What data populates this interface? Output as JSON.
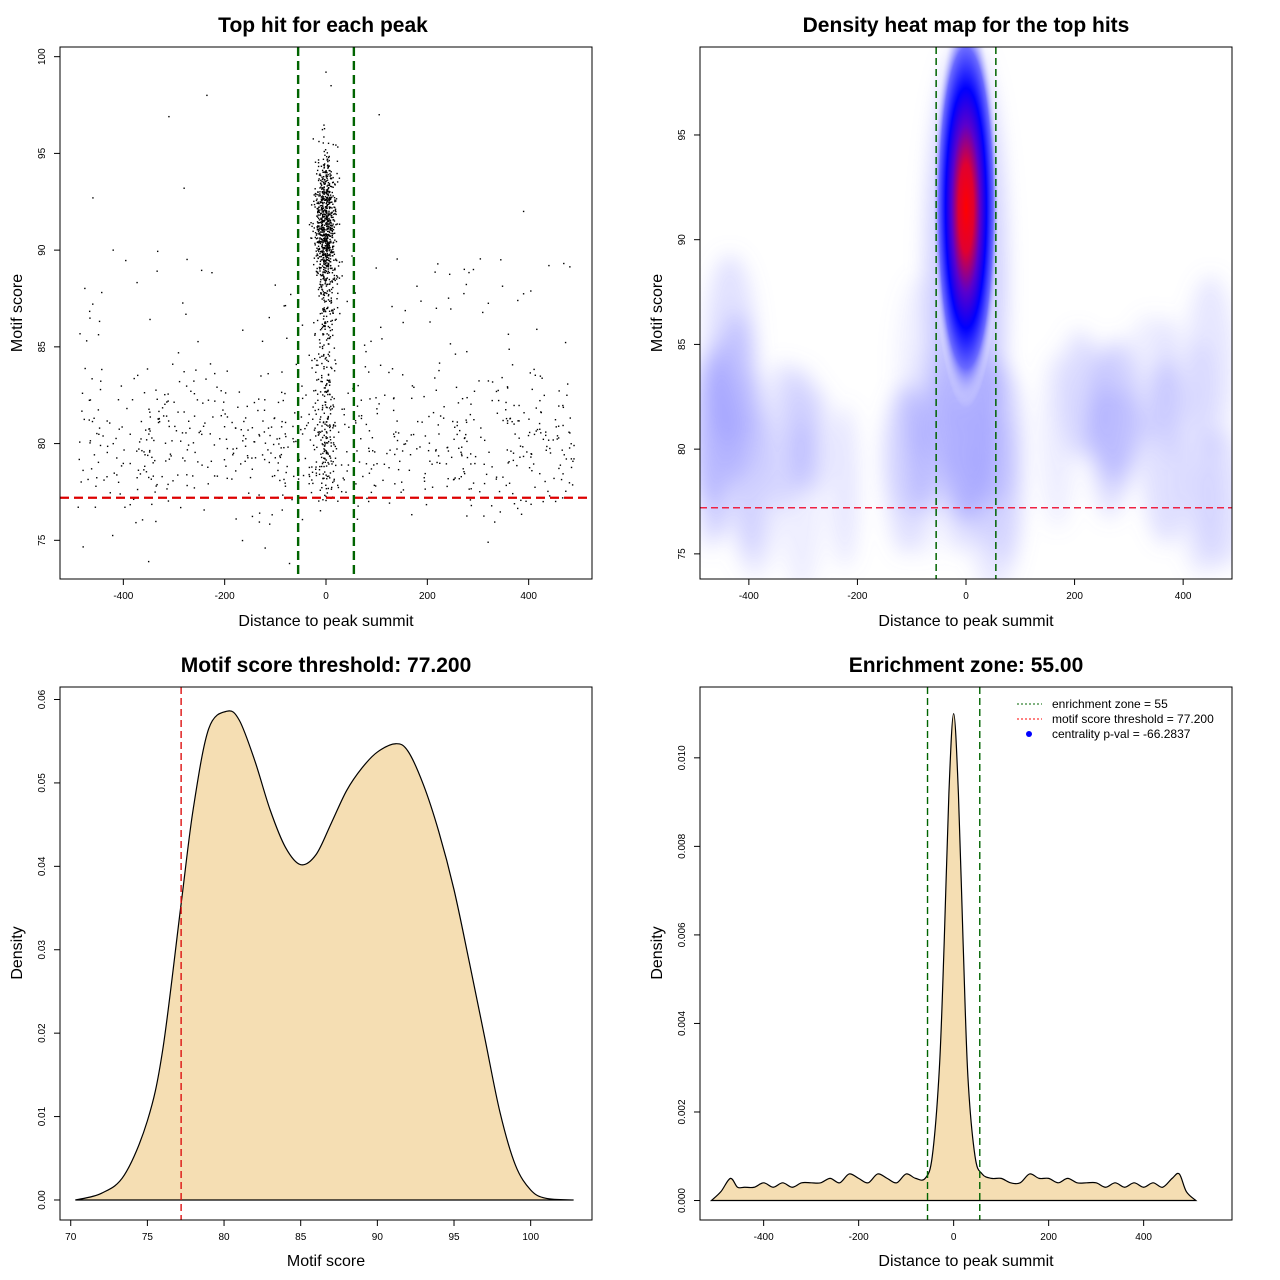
{
  "chart_data": [
    {
      "id": "scatter",
      "type": "scatter",
      "title": "Top hit for each peak",
      "xlabel": "Distance to peak summit",
      "ylabel": "Motif score",
      "xlim": [
        -525,
        525
      ],
      "ylim": [
        73,
        100.5
      ],
      "xticks": [
        -400,
        -200,
        0,
        200,
        400
      ],
      "yticks": [
        75,
        80,
        85,
        90,
        95,
        100
      ],
      "threshold": 77.2,
      "zone": [
        -55,
        55
      ],
      "description_points": {
        "central_cluster": {
          "x_range": [
            -55,
            55
          ],
          "y_range": [
            75,
            99.2
          ]
        },
        "background": {
          "x_range": [
            -490,
            490
          ],
          "y_range": [
            73.8,
            98.1
          ]
        }
      },
      "sample_points": [
        {
          "x": -235,
          "y": 98.0
        },
        {
          "x": -310,
          "y": 96.9
        },
        {
          "x": 105,
          "y": 97.0
        },
        {
          "x": -460,
          "y": 92.7
        },
        {
          "x": 390,
          "y": 92.0
        },
        {
          "x": -280,
          "y": 93.2
        },
        {
          "x": -420,
          "y": 90.0
        },
        {
          "x": 440,
          "y": 89.2
        },
        {
          "x": 345,
          "y": 89.5
        },
        {
          "x": -350,
          "y": 73.9
        },
        {
          "x": -120,
          "y": 74.6
        },
        {
          "x": 320,
          "y": 74.9
        },
        {
          "x": -72,
          "y": 73.8
        },
        {
          "x": 0,
          "y": 99.2
        },
        {
          "x": 10,
          "y": 98.5
        }
      ]
    },
    {
      "id": "heatmap",
      "type": "heatmap",
      "title": "Density heat map for the top hits",
      "xlabel": "Distance to peak summit",
      "ylabel": "Motif score",
      "xlim": [
        -490,
        490
      ],
      "ylim": [
        73.8,
        99.2
      ],
      "xticks": [
        -400,
        -200,
        0,
        200,
        400
      ],
      "yticks": [
        75,
        80,
        85,
        90,
        95
      ],
      "threshold": 77.2,
      "zone": [
        -55,
        55
      ],
      "peak": {
        "x": 0,
        "y": 91.5
      },
      "colors": {
        "low": "#ffffff",
        "mid": "#0000ff",
        "high": "#ff0000"
      }
    },
    {
      "id": "score-density",
      "type": "area",
      "title": "Motif score threshold: 77.200",
      "xlabel": "Motif score",
      "ylabel": "Density",
      "xlim": [
        69.3,
        104
      ],
      "ylim": [
        -0.0024,
        0.0615
      ],
      "xticks": [
        70,
        75,
        80,
        85,
        90,
        95,
        100
      ],
      "yticks": [
        0.0,
        0.01,
        0.02,
        0.03,
        0.04,
        0.05,
        0.06
      ],
      "ytick_labels": [
        "0.00",
        "0.01",
        "0.02",
        "0.03",
        "0.04",
        "0.05",
        "0.06"
      ],
      "threshold": 77.2,
      "fill": "#f5deb3",
      "x": [
        70.3,
        72,
        73.5,
        75,
        76,
        77.2,
        78,
        79,
        80.2,
        81,
        82,
        83,
        84,
        85,
        86,
        87,
        88,
        89,
        90,
        91.2,
        92,
        93,
        94,
        95,
        96,
        97,
        98,
        99,
        100,
        101,
        102.8
      ],
      "values": [
        0.0,
        0.0008,
        0.003,
        0.0095,
        0.018,
        0.0355,
        0.047,
        0.0565,
        0.0586,
        0.0575,
        0.0527,
        0.0468,
        0.0423,
        0.0402,
        0.0414,
        0.0452,
        0.0491,
        0.0518,
        0.0537,
        0.0547,
        0.0538,
        0.0498,
        0.0442,
        0.0372,
        0.0285,
        0.0195,
        0.0105,
        0.0042,
        0.0012,
        0.0002,
        0.0
      ]
    },
    {
      "id": "distance-density",
      "type": "area",
      "title": "Enrichment zone: 55.00",
      "xlabel": "Distance to peak summit",
      "ylabel": "Density",
      "xlim": [
        -534,
        586
      ],
      "ylim": [
        -0.00044,
        0.0116
      ],
      "xticks": [
        -400,
        -200,
        0,
        200,
        400
      ],
      "yticks": [
        0.0,
        0.002,
        0.004,
        0.006,
        0.008,
        0.01
      ],
      "ytick_labels": [
        "0.000",
        "0.002",
        "0.004",
        "0.006",
        "0.008",
        "0.010"
      ],
      "zone": [
        -55,
        55
      ],
      "fill": "#f5deb3",
      "x": [
        -510,
        -490,
        -470,
        -455,
        -440,
        -420,
        -400,
        -380,
        -360,
        -340,
        -320,
        -300,
        -280,
        -260,
        -240,
        -220,
        -200,
        -180,
        -160,
        -140,
        -120,
        -100,
        -80,
        -60,
        -45,
        -30,
        -20,
        -10,
        0,
        10,
        20,
        30,
        45,
        60,
        80,
        100,
        120,
        140,
        160,
        180,
        200,
        220,
        240,
        260,
        280,
        300,
        320,
        340,
        360,
        380,
        400,
        420,
        440,
        460,
        475,
        490,
        510
      ],
      "values": [
        0.0,
        0.0002,
        0.0005,
        0.0003,
        0.0003,
        0.0003,
        0.0004,
        0.0003,
        0.0004,
        0.0003,
        0.0004,
        0.0004,
        0.0004,
        0.0005,
        0.0004,
        0.0006,
        0.0005,
        0.0004,
        0.0006,
        0.0005,
        0.0004,
        0.0006,
        0.0005,
        0.0005,
        0.001,
        0.003,
        0.0058,
        0.0092,
        0.011,
        0.0092,
        0.0058,
        0.0028,
        0.001,
        0.0006,
        0.0005,
        0.0005,
        0.0004,
        0.0004,
        0.0006,
        0.0005,
        0.0005,
        0.0004,
        0.0005,
        0.0004,
        0.0004,
        0.0004,
        0.0003,
        0.0004,
        0.0003,
        0.0004,
        0.0003,
        0.0004,
        0.0003,
        0.0005,
        0.0006,
        0.0002,
        0.0
      ],
      "legend": [
        {
          "label": "enrichment zone = 55",
          "color": "#006400",
          "style": "dotted"
        },
        {
          "label": "motif score threshold = 77.200",
          "color": "#ff0000",
          "style": "dotted"
        },
        {
          "label": "centrality p-val = -66.2837",
          "color": "#0000ff",
          "style": "point"
        }
      ],
      "legend_position": "top-right"
    }
  ]
}
